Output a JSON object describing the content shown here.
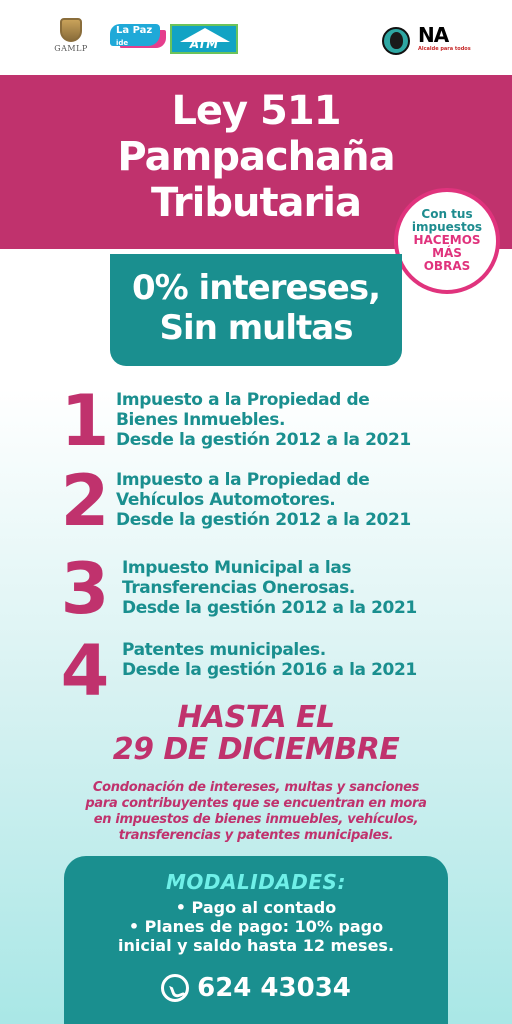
{
  "logos": {
    "gamlp": "GAMLP",
    "lapaz": "La Paz",
    "lapaz_suffix": "ide",
    "atm": "ATM",
    "na": "NA",
    "na_tagline": "Alcalde para todos"
  },
  "title": [
    "Ley 511",
    "Pampachaña",
    "Tributaria"
  ],
  "badge": {
    "line1": "Con tus",
    "line2": "impuestos",
    "line3": "HACEMOS",
    "line4": "MÁS",
    "line5": "OBRAS"
  },
  "promo": [
    "0% intereses,",
    "Sin multas"
  ],
  "items": [
    {
      "number": "1",
      "lines": [
        "Impuesto a la Propiedad de",
        "Bienes Inmuebles.",
        "Desde la gestión 2012 a la 2021"
      ]
    },
    {
      "number": "2",
      "lines": [
        "Impuesto a la Propiedad de",
        "Vehículos Automotores.",
        "Desde la gestión 2012 a la 2021"
      ]
    },
    {
      "number": "3",
      "lines": [
        "Impuesto Municipal a las",
        "Transferencias Onerosas.",
        "Desde la gestión 2012 a la 2021"
      ]
    },
    {
      "number": "4",
      "lines": [
        "Patentes municipales.",
        "Desde la gestión 2016 a la 2021"
      ]
    }
  ],
  "deadline": [
    "HASTA EL",
    "29 DE DICIEMBRE"
  ],
  "description": [
    "Condonación de intereses, multas y sanciones",
    "para contribuyentes que se encuentran en mora",
    "en impuestos de bienes inmuebles, vehículos,",
    "transferencias y patentes municipales."
  ],
  "modalities": {
    "heading": "MODALIDADES:",
    "options": [
      "• Pago al contado",
      "• Planes de pago: 10% pago",
      "inicial y saldo hasta 12 meses."
    ],
    "phone": "624 43034",
    "phone_icon": "whatsapp-icon"
  },
  "colors": {
    "magenta": "#c0326d",
    "teal": "#1a8f8f",
    "aqua_heading": "#6ff0e8"
  }
}
